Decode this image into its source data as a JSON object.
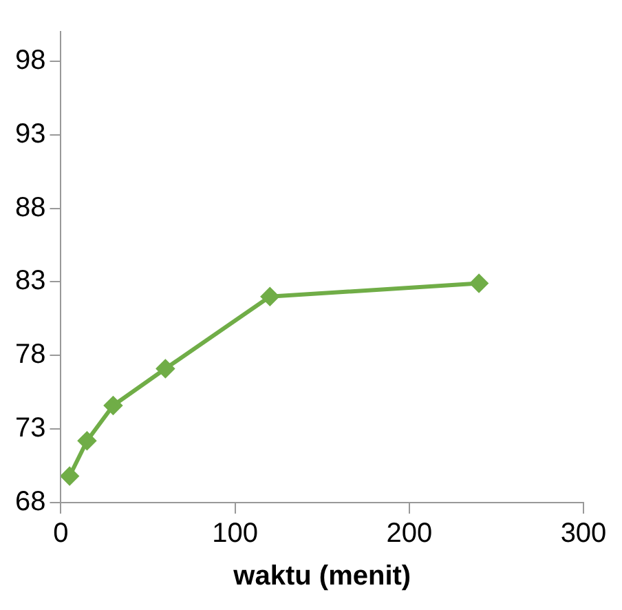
{
  "chart_data": {
    "type": "line",
    "xlabel": "waktu (menit)",
    "x": [
      5,
      15,
      30,
      60,
      120,
      240
    ],
    "series": [
      {
        "color": "#70ad47",
        "values": [
          69.8,
          72.2,
          74.6,
          77.1,
          82.0,
          82.9
        ]
      }
    ],
    "xlim": [
      0,
      300
    ],
    "xticks": [
      0,
      100,
      200,
      300
    ],
    "ylim": [
      68,
      100
    ],
    "yticks": [
      68,
      73,
      78,
      83,
      88,
      93,
      98
    ],
    "marker": "diamond",
    "line_style": "solid",
    "grid": false,
    "legend": false
  }
}
